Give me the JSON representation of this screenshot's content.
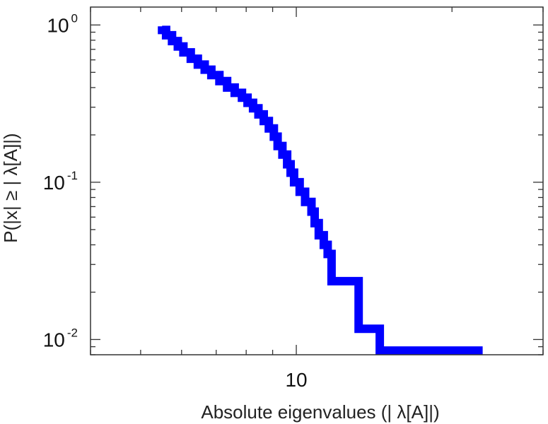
{
  "chart_data": {
    "type": "line",
    "xlabel": "Absolute eigenvalues (|     λ[A]|)",
    "ylabel": "P(|x|  ≥ | λ[A]|)",
    "x_scale": "log",
    "y_scale": "log",
    "xlim": [
      4,
      30
    ],
    "ylim": [
      0.008,
      1.3
    ],
    "x_ticks": [
      {
        "value": 10,
        "label": "10"
      }
    ],
    "y_ticks": [
      {
        "value": 1,
        "base": "10",
        "exp": "0"
      },
      {
        "value": 0.1,
        "base": "10",
        "exp": "-1"
      },
      {
        "value": 0.01,
        "base": "10",
        "exp": "-2"
      }
    ],
    "grid": false,
    "line_color": "#0000ff",
    "series": [
      {
        "step": true,
        "points": [
          [
            5.5,
            0.98
          ],
          [
            5.6,
            0.93
          ],
          [
            5.75,
            0.86
          ],
          [
            5.9,
            0.79
          ],
          [
            6.05,
            0.73
          ],
          [
            6.25,
            0.67
          ],
          [
            6.45,
            0.61
          ],
          [
            6.65,
            0.56
          ],
          [
            6.85,
            0.52
          ],
          [
            7.1,
            0.48
          ],
          [
            7.35,
            0.44
          ],
          [
            7.6,
            0.4
          ],
          [
            7.85,
            0.37
          ],
          [
            8.05,
            0.345
          ],
          [
            8.25,
            0.32
          ],
          [
            8.45,
            0.295
          ],
          [
            8.65,
            0.27
          ],
          [
            8.85,
            0.245
          ],
          [
            9.05,
            0.22
          ],
          [
            9.2,
            0.195
          ],
          [
            9.4,
            0.17
          ],
          [
            9.6,
            0.15
          ],
          [
            9.75,
            0.13
          ],
          [
            9.9,
            0.115
          ],
          [
            10.15,
            0.1
          ],
          [
            10.4,
            0.087
          ],
          [
            10.7,
            0.075
          ],
          [
            10.85,
            0.065
          ],
          [
            11.05,
            0.055
          ],
          [
            11.3,
            0.046
          ],
          [
            11.5,
            0.04
          ],
          [
            11.7,
            0.035
          ],
          [
            13.2,
            0.0235
          ],
          [
            14.5,
            0.0117
          ],
          [
            22.5,
            0.0085
          ]
        ]
      }
    ]
  }
}
